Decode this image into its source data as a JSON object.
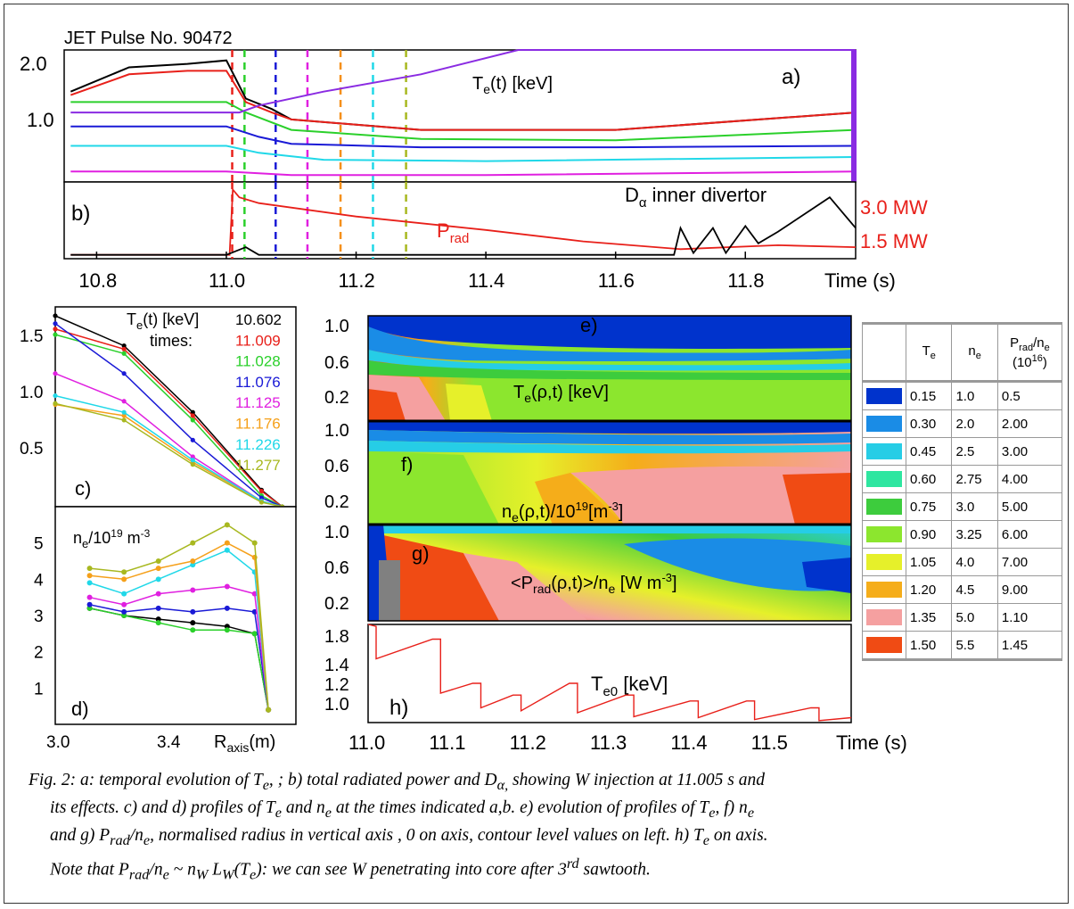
{
  "figure": {
    "title": "JET Pulse No. 90472",
    "panel_a": {
      "label": "a)",
      "quantity": "T",
      "quantity_sub": "e",
      "quantity_rest": "(t) [keV]",
      "yticks": [
        "2.0",
        "1.0"
      ]
    },
    "panel_b": {
      "label": "b)",
      "prad": "P",
      "prad_sub": "rad",
      "dalpha": "D",
      "dalpha_sub": "α",
      "dalpha_rest": " inner divertor",
      "scale_hi": "3.0 MW",
      "scale_lo": "1.5 MW"
    },
    "top_xaxis": {
      "ticks": [
        "10.8",
        "11.0",
        "11.2",
        "11.4",
        "11.6",
        "11.8"
      ],
      "label": "Time (s)"
    },
    "panel_c": {
      "label": "c)",
      "title": "T",
      "title_sub": "e",
      "title_rest": "(t) [keV]",
      "times_label": "times:",
      "yticks": [
        "1.5",
        "1.0",
        "0.5"
      ]
    },
    "panel_d": {
      "label": "d)",
      "title": "n",
      "title_sub": "e",
      "title_rest": "/10",
      "title_sup": "19",
      "title_unit": " m",
      "title_sup2": "-3",
      "yticks": [
        "5",
        "4",
        "3",
        "2",
        "1"
      ],
      "xticks": [
        "3.0",
        "3.4"
      ],
      "xlabel": "R",
      "xlabel_sub": "axis",
      "xlabel_rest": "(m)"
    },
    "panel_e": {
      "label": "e)",
      "title": "T",
      "title_sub": "e",
      "title_rest": "(ρ,t) [keV]",
      "yticks": [
        "1.0",
        "0.6",
        "0.2"
      ]
    },
    "panel_f": {
      "label": "f)",
      "title": "n",
      "title_sub": "e",
      "title_rest": "(ρ,t)/10",
      "title_sup": "19",
      "title_unit": "[m",
      "title_sup2": "-3",
      "title_end": "]",
      "yticks": [
        "1.0",
        "0.6",
        "0.2"
      ]
    },
    "panel_g": {
      "label": "g)",
      "title": "<P",
      "title_sub": "rad",
      "title_rest": "(ρ,t)>/n",
      "title_sub2": "e",
      "title_unit": " [W m",
      "title_sup": "-3",
      "title_end": "]",
      "yticks": [
        "1.0",
        "0.6",
        "0.2"
      ]
    },
    "panel_h": {
      "label": "h)",
      "title": "T",
      "title_sub": "e0",
      "title_rest": " [keV]",
      "yticks": [
        "1.8",
        "1.4",
        "1.2",
        "1.0"
      ]
    },
    "bottom_xaxis": {
      "ticks": [
        "11.0",
        "11.1",
        "11.2",
        "11.3",
        "11.4",
        "11.5"
      ],
      "label": "Time (s)"
    }
  },
  "legend_table": {
    "headers": {
      "te": "T",
      "te_sub": "e",
      "ne": "n",
      "ne_sub": "e",
      "prad": "P",
      "prad_sub": "rad",
      "prad_rest": "/n",
      "prad_sub2": "e",
      "scale": "(10",
      "scale_sup": "16",
      "scale_end": ")"
    },
    "rows": [
      {
        "color": "#0033cc",
        "te": "0.15",
        "ne": "1.0",
        "prad": "0.5"
      },
      {
        "color": "#1a8ce6",
        "te": "0.30",
        "ne": "2.0",
        "prad": "2.00"
      },
      {
        "color": "#26cde6",
        "te": "0.45",
        "ne": "2.5",
        "prad": "3.00"
      },
      {
        "color": "#2ee6a0",
        "te": "0.60",
        "ne": "2.75",
        "prad": "4.00"
      },
      {
        "color": "#3dcc3d",
        "te": "0.75",
        "ne": "3.0",
        "prad": "5.00"
      },
      {
        "color": "#8ce62e",
        "te": "0.90",
        "ne": "3.25",
        "prad": "6.00"
      },
      {
        "color": "#e6f02a",
        "te": "1.05",
        "ne": "4.0",
        "prad": "7.00"
      },
      {
        "color": "#f5ad1a",
        "te": "1.20",
        "ne": "4.5",
        "prad": "9.00"
      },
      {
        "color": "#f5a0a0",
        "te": "1.35",
        "ne": "5.0",
        "prad": "1.10"
      },
      {
        "color": "#f04b14",
        "te": "1.50",
        "ne": "5.5",
        "prad": "1.45"
      }
    ]
  },
  "chart_data": [
    {
      "type": "line",
      "id": "a",
      "x_range": [
        10.75,
        11.97
      ],
      "ylim": [
        0.2,
        2.1
      ],
      "vlines": [
        {
          "x": 11.009,
          "color": "#e8201a"
        },
        {
          "x": 11.028,
          "color": "#2bd02b"
        },
        {
          "x": 11.076,
          "color": "#1a1ad6"
        },
        {
          "x": 11.125,
          "color": "#e020e0"
        },
        {
          "x": 11.176,
          "color": "#f5901a"
        },
        {
          "x": 11.226,
          "color": "#20d8e8"
        },
        {
          "x": 11.277,
          "color": "#a8b820"
        }
      ],
      "series": [
        {
          "color": "#000000",
          "x": [
            10.76,
            10.85,
            10.94,
            11.0,
            11.03,
            11.07,
            11.1,
            11.3,
            11.6,
            11.97
          ],
          "values": [
            1.5,
            1.85,
            1.9,
            1.95,
            1.4,
            1.25,
            1.1,
            0.95,
            0.95,
            1.2
          ]
        },
        {
          "color": "#e8201a",
          "x": [
            10.76,
            10.85,
            10.94,
            11.0,
            11.03,
            11.07,
            11.1,
            11.3,
            11.6,
            11.97
          ],
          "values": [
            1.45,
            1.75,
            1.8,
            1.8,
            1.35,
            1.2,
            1.1,
            0.95,
            0.95,
            1.2
          ]
        },
        {
          "color": "#2bd02b",
          "x": [
            10.76,
            11.0,
            11.03,
            11.1,
            11.3,
            11.6,
            11.97
          ],
          "values": [
            1.35,
            1.35,
            1.2,
            0.95,
            0.82,
            0.8,
            0.95
          ]
        },
        {
          "color": "#1a1ad6",
          "x": [
            10.76,
            11.0,
            11.05,
            11.1,
            11.3,
            11.6,
            11.97
          ],
          "values": [
            1.0,
            1.0,
            0.85,
            0.75,
            0.7,
            0.7,
            0.72
          ]
        },
        {
          "color": "#20d8e8",
          "x": [
            10.76,
            11.0,
            11.05,
            11.15,
            11.4,
            11.97
          ],
          "values": [
            0.72,
            0.72,
            0.62,
            0.52,
            0.5,
            0.56
          ]
        },
        {
          "color": "#e020e0",
          "x": [
            10.76,
            11.0,
            11.1,
            11.4,
            11.97
          ],
          "values": [
            0.35,
            0.35,
            0.3,
            0.3,
            0.35
          ]
        },
        {
          "color": "#8a2be2",
          "x": [
            10.76,
            11.02,
            11.05,
            11.15,
            11.3,
            11.45,
            11.97
          ],
          "values": [
            1.2,
            1.2,
            1.3,
            1.5,
            1.75,
            2.1,
            2.1
          ]
        }
      ]
    },
    {
      "type": "line",
      "id": "b",
      "x_range": [
        10.75,
        11.97
      ],
      "scale_labels": [
        "3.0 MW",
        "1.5 MW"
      ],
      "series": [
        {
          "name": "P_rad",
          "color": "#e8201a",
          "x": [
            10.76,
            11.005,
            11.01,
            11.02,
            11.05,
            11.2,
            11.4,
            11.55,
            11.7,
            11.85,
            11.97
          ],
          "values": [
            0.2,
            0.2,
            3.6,
            3.2,
            2.9,
            2.2,
            1.5,
            0.9,
            0.5,
            0.7,
            0.6
          ]
        },
        {
          "name": "D_α inner divertor",
          "color": "#000000",
          "x": [
            10.76,
            11.0,
            11.03,
            11.05,
            11.69,
            11.7,
            11.72,
            11.75,
            11.77,
            11.8,
            11.82,
            11.85,
            11.93,
            11.97
          ],
          "values": [
            0.2,
            0.2,
            0.6,
            0.2,
            0.2,
            1.6,
            0.3,
            1.6,
            0.3,
            1.7,
            0.8,
            1.4,
            3.2,
            1.6
          ]
        }
      ]
    },
    {
      "type": "scatter",
      "id": "c",
      "xlim": [
        2.9,
        3.6
      ],
      "ylim": [
        0,
        1.8
      ],
      "series": [
        {
          "name": "10.602",
          "color": "#000000",
          "x": [
            2.9,
            3.1,
            3.3,
            3.5,
            3.56
          ],
          "values": [
            1.72,
            1.45,
            0.85,
            0.15,
            0.0
          ]
        },
        {
          "name": "11.009",
          "color": "#e8201a",
          "x": [
            2.9,
            3.1,
            3.3,
            3.5,
            3.56
          ],
          "values": [
            1.6,
            1.42,
            0.82,
            0.14,
            0.0
          ]
        },
        {
          "name": "11.028",
          "color": "#2bd02b",
          "x": [
            2.9,
            3.1,
            3.3,
            3.5,
            3.56
          ],
          "values": [
            1.55,
            1.38,
            0.78,
            0.1,
            0.0
          ]
        },
        {
          "name": "11.076",
          "color": "#1a1ad6",
          "x": [
            2.9,
            3.1,
            3.3,
            3.5,
            3.56
          ],
          "values": [
            1.65,
            1.2,
            0.6,
            0.08,
            0.0
          ]
        },
        {
          "name": "11.125",
          "color": "#e020e0",
          "x": [
            2.9,
            3.1,
            3.3,
            3.5,
            3.56
          ],
          "values": [
            1.2,
            0.95,
            0.45,
            0.05,
            0.0
          ]
        },
        {
          "name": "11.176",
          "color": "#f5a01a",
          "x": [
            2.9,
            3.1,
            3.3,
            3.5,
            3.56
          ],
          "values": [
            0.92,
            0.82,
            0.4,
            0.05,
            0.0
          ]
        },
        {
          "name": "11.226",
          "color": "#20d8e8",
          "x": [
            2.9,
            3.1,
            3.3,
            3.5,
            3.56
          ],
          "values": [
            1.0,
            0.85,
            0.42,
            0.05,
            0.0
          ]
        },
        {
          "name": "11.277",
          "color": "#a8b820",
          "x": [
            2.9,
            3.1,
            3.3,
            3.5,
            3.56
          ],
          "values": [
            0.93,
            0.78,
            0.38,
            0.04,
            0.0
          ]
        }
      ]
    },
    {
      "type": "scatter",
      "id": "d",
      "xlim": [
        2.9,
        3.6
      ],
      "ylim": [
        0,
        6
      ],
      "series": [
        {
          "color": "#000000",
          "x": [
            3.0,
            3.1,
            3.2,
            3.3,
            3.4,
            3.48,
            3.52
          ],
          "values": [
            3.2,
            3.0,
            2.9,
            2.8,
            2.7,
            2.5,
            0.4
          ]
        },
        {
          "color": "#2bd02b",
          "x": [
            3.0,
            3.1,
            3.2,
            3.3,
            3.4,
            3.48,
            3.52
          ],
          "values": [
            3.2,
            3.0,
            2.8,
            2.6,
            2.6,
            2.5,
            0.4
          ]
        },
        {
          "color": "#1a1ad6",
          "x": [
            3.0,
            3.1,
            3.2,
            3.3,
            3.4,
            3.48,
            3.52
          ],
          "values": [
            3.3,
            3.1,
            3.2,
            3.1,
            3.2,
            3.1,
            0.4
          ]
        },
        {
          "color": "#e020e0",
          "x": [
            3.0,
            3.1,
            3.2,
            3.3,
            3.4,
            3.48,
            3.52
          ],
          "values": [
            3.5,
            3.3,
            3.6,
            3.7,
            3.8,
            3.6,
            0.4
          ]
        },
        {
          "color": "#20d8e8",
          "x": [
            3.0,
            3.1,
            3.2,
            3.3,
            3.4,
            3.48,
            3.52
          ],
          "values": [
            3.9,
            3.6,
            4.0,
            4.4,
            4.8,
            4.2,
            0.4
          ]
        },
        {
          "color": "#f5a01a",
          "x": [
            3.0,
            3.1,
            3.2,
            3.3,
            3.4,
            3.48,
            3.52
          ],
          "values": [
            4.1,
            4.0,
            4.3,
            4.5,
            5.0,
            4.6,
            0.4
          ]
        },
        {
          "color": "#a8b820",
          "x": [
            3.0,
            3.1,
            3.2,
            3.3,
            3.4,
            3.48,
            3.52
          ],
          "values": [
            4.3,
            4.2,
            4.5,
            5.0,
            5.5,
            5.0,
            0.4
          ]
        }
      ]
    },
    {
      "type": "line",
      "id": "h",
      "xlim": [
        11.0,
        11.6
      ],
      "ylim": [
        0.9,
        1.9
      ],
      "series": [
        {
          "color": "#e8201a",
          "x": [
            11.0,
            11.01,
            11.01,
            11.08,
            11.09,
            11.09,
            11.13,
            11.14,
            11.14,
            11.18,
            11.19,
            11.19,
            11.25,
            11.26,
            11.26,
            11.32,
            11.33,
            11.33,
            11.4,
            11.41,
            11.41,
            11.47,
            11.48,
            11.48,
            11.55,
            11.56,
            11.56,
            11.6
          ],
          "values": [
            1.9,
            1.88,
            1.55,
            1.75,
            1.75,
            1.2,
            1.3,
            1.3,
            1.05,
            1.18,
            1.18,
            1.02,
            1.3,
            1.3,
            1.0,
            1.18,
            1.18,
            0.96,
            1.12,
            1.12,
            0.95,
            1.12,
            1.12,
            0.93,
            1.05,
            1.05,
            0.92,
            0.95
          ]
        }
      ]
    }
  ]
}
